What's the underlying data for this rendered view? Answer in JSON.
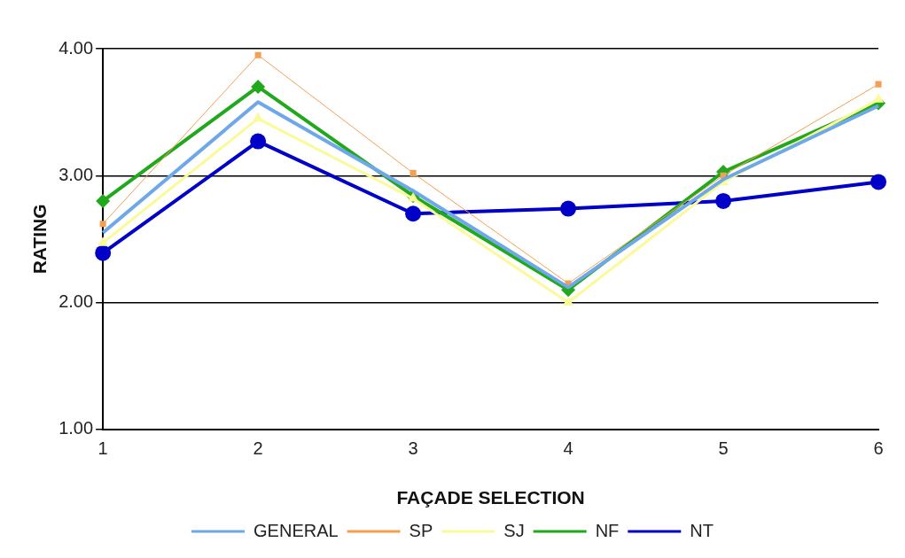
{
  "chart_data": {
    "type": "line",
    "xlabel": "FAÇADE SELECTION",
    "ylabel": "RATING",
    "categories": [
      "1",
      "2",
      "3",
      "4",
      "5",
      "6"
    ],
    "series": [
      {
        "name": "GENERAL",
        "color": "#6fa8e8",
        "marker": "none",
        "values": [
          2.55,
          3.58,
          2.88,
          2.12,
          2.97,
          3.55
        ]
      },
      {
        "name": "SP",
        "color": "#f5a050",
        "marker": "square",
        "values": [
          2.62,
          3.95,
          3.02,
          2.15,
          3.0,
          3.72
        ]
      },
      {
        "name": "SJ",
        "color": "#fafa9a",
        "marker": "triangle",
        "values": [
          2.47,
          3.45,
          2.82,
          2.0,
          2.95,
          3.6
        ]
      },
      {
        "name": "NF",
        "color": "#22a81c",
        "marker": "diamond",
        "values": [
          2.8,
          3.7,
          2.84,
          2.1,
          3.03,
          3.57
        ]
      },
      {
        "name": "NT",
        "color": "#0000c8",
        "marker": "circle",
        "values": [
          2.39,
          3.27,
          2.7,
          2.74,
          2.8,
          2.95
        ]
      }
    ],
    "ylim": [
      1,
      4
    ],
    "yticks": [
      {
        "value": 1,
        "label": "1.00"
      },
      {
        "value": 2,
        "label": "2.00"
      },
      {
        "value": 3,
        "label": "3.00"
      },
      {
        "value": 4,
        "label": "4.00"
      }
    ],
    "grid": "y",
    "legend": "bottom",
    "line_style": "solid"
  }
}
